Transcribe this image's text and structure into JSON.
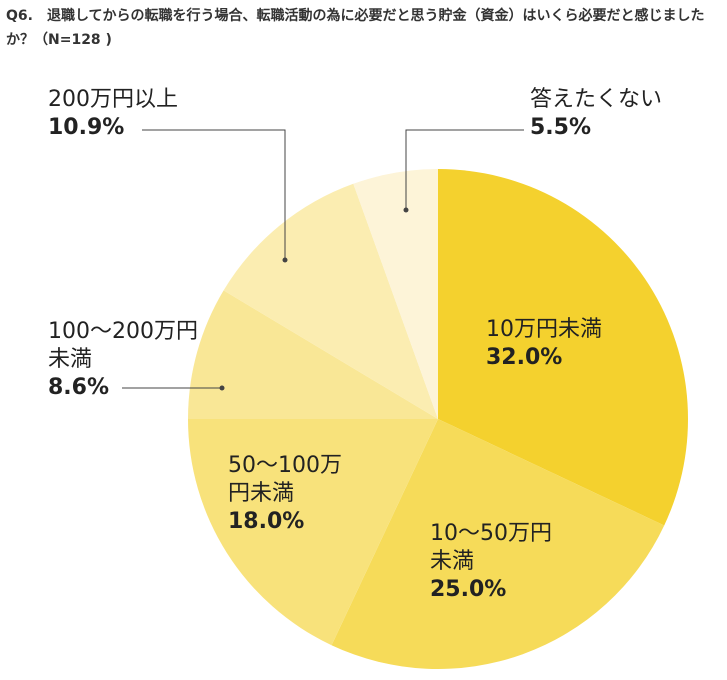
{
  "chart_data": {
    "type": "pie",
    "title": "Q6.　退職してからの転職を行う場合、転職活動の為に必要だと思う貯金（資金）はいくら必要だと感じましたか？（N=128 )",
    "categories": [
      "10万円未満",
      "10～50万円未満",
      "50～100万円未満",
      "100～200万円未満",
      "200万円以上",
      "答えたくない"
    ],
    "values": [
      32.0,
      25.0,
      18.0,
      8.6,
      10.9,
      5.5
    ],
    "value_labels": [
      "32.0%",
      "25.0%",
      "18.0%",
      "8.6%",
      "10.9%",
      "5.5%"
    ],
    "colors": [
      "#f4d12e",
      "#f6db59",
      "#f8e27b",
      "#f9e796",
      "#fbedb1",
      "#fdf4d8"
    ]
  }
}
